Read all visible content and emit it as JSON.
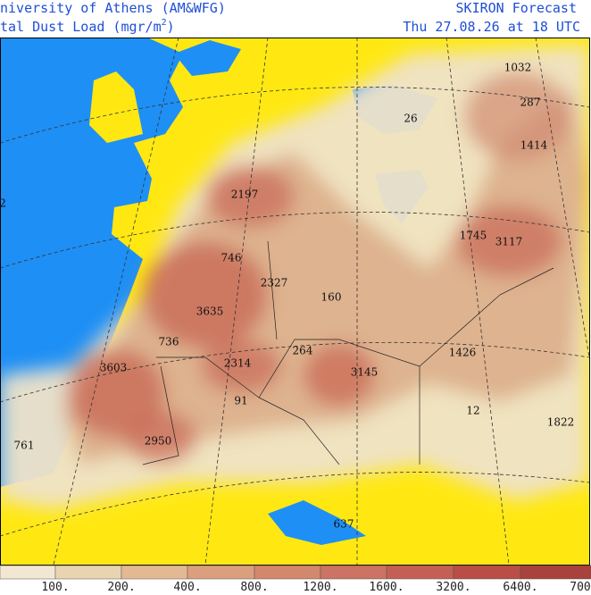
{
  "header": {
    "left_line1": "niversity of Athens (AM&WFG)",
    "left_line2": "tal Dust Load (mgr/m",
    "left_line2_sup": "2",
    "left_line2_end": ")",
    "right_line1": "SKIRON Forecast",
    "right_line2": "Thu 27.08.26 at 18 UTC"
  },
  "map_labels": [
    1032,
    287,
    26,
    1414,
    2197,
    2,
    1745,
    3117,
    746,
    2327,
    160,
    3635,
    736,
    264,
    1426,
    3603,
    2314,
    3145,
    91,
    12,
    1822,
    761,
    2950,
    637
  ],
  "colorbar_labels": [
    "100.",
    "200.",
    "400.",
    "800.",
    "1200.",
    "1600.",
    "3200.",
    "6400.",
    "700"
  ]
}
